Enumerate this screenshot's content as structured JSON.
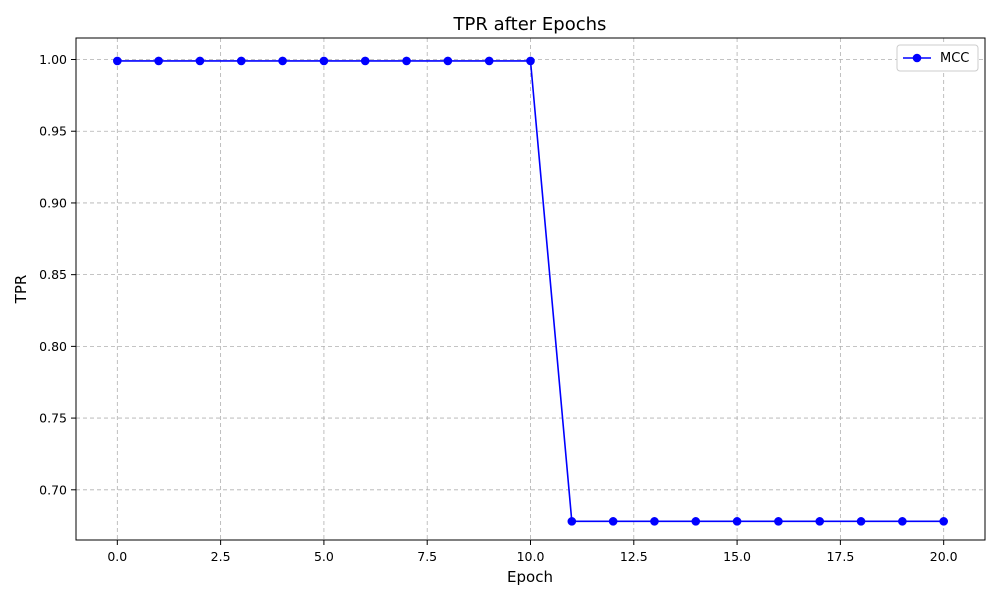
{
  "chart_data": {
    "type": "line",
    "title": "TPR after Epochs",
    "xlabel": "Epoch",
    "ylabel": "TPR",
    "xlim": [
      -1,
      21
    ],
    "ylim": [
      0.665,
      1.015
    ],
    "xticks": [
      0,
      2.5,
      5,
      7.5,
      10,
      12.5,
      15,
      17.5,
      20
    ],
    "xtick_labels": [
      "0.0",
      "2.5",
      "5.0",
      "7.5",
      "10.0",
      "12.5",
      "15.0",
      "17.5",
      "20.0"
    ],
    "yticks": [
      0.7,
      0.75,
      0.8,
      0.85,
      0.9,
      0.95,
      1.0
    ],
    "ytick_labels": [
      "0.70",
      "0.75",
      "0.80",
      "0.85",
      "0.90",
      "0.95",
      "1.00"
    ],
    "grid": true,
    "legend_position": "top-right",
    "series": [
      {
        "name": "MCC",
        "color": "#0000ff",
        "marker": "circle",
        "x": [
          0,
          1,
          2,
          3,
          4,
          5,
          6,
          7,
          8,
          9,
          10,
          11,
          12,
          13,
          14,
          15,
          16,
          17,
          18,
          19,
          20
        ],
        "y": [
          0.999,
          0.999,
          0.999,
          0.999,
          0.999,
          0.999,
          0.999,
          0.999,
          0.999,
          0.999,
          0.999,
          0.678,
          0.678,
          0.678,
          0.678,
          0.678,
          0.678,
          0.678,
          0.678,
          0.678,
          0.678
        ]
      }
    ]
  }
}
